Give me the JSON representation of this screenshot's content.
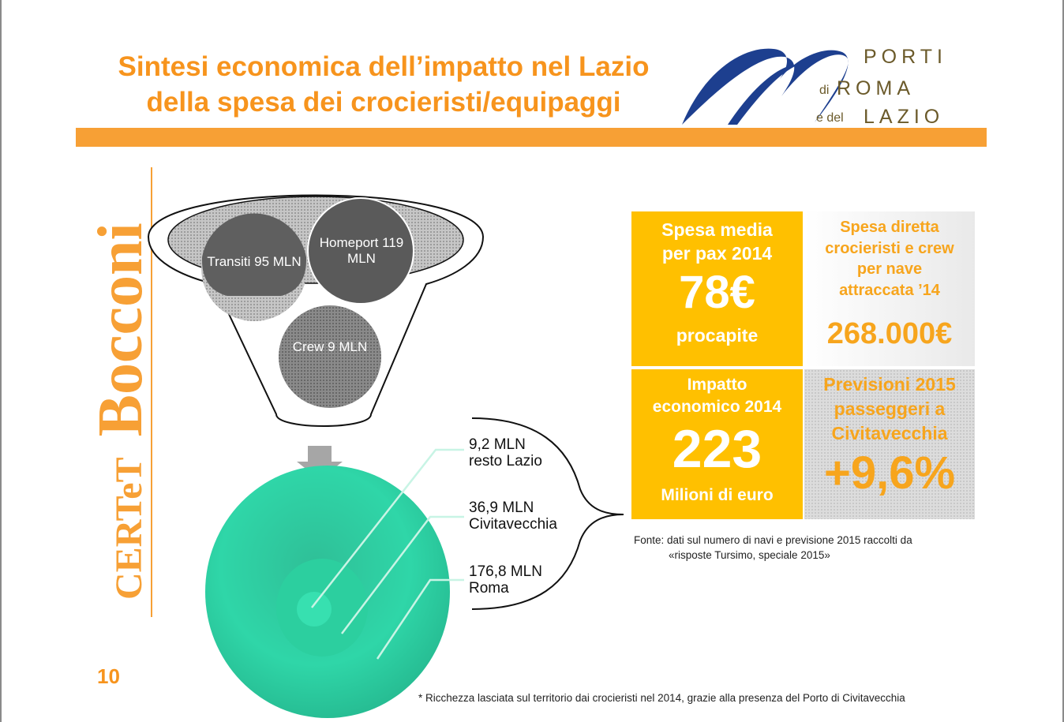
{
  "title": {
    "line1": "Sintesi economica dell’impatto nel Lazio",
    "line2": "della spesa dei crocieristi/equipaggi"
  },
  "logo": {
    "porti": "PORTI",
    "di": "di",
    "roma": "ROMA",
    "edel": "e del",
    "lazio": "LAZIO",
    "colors": {
      "text": "#6b5a2a",
      "swoosh": "#1d3f8f"
    }
  },
  "side_logo": {
    "certet": "CERTeT",
    "bocconi": "Bocconi"
  },
  "page_number": "10",
  "funnel": {
    "transiti": "Transiti 95 MLN",
    "homeport": "Homeport 119 MLN",
    "crew": "Crew 9 MLN"
  },
  "segments": [
    {
      "value": "9,2 MLN",
      "label": "resto Lazio"
    },
    {
      "value": "36,9 MLN",
      "label": "Civitavecchia"
    },
    {
      "value": "176,8 MLN",
      "label": "Roma"
    }
  ],
  "boxes": {
    "spesa_media": {
      "title_line1": "Spesa media",
      "title_line2": "per pax 2014",
      "value": "78€",
      "sub": "procapite"
    },
    "spesa_diretta": {
      "line1": "Spesa diretta",
      "line2": "crocieristi e crew",
      "line3": "per nave",
      "line4": "attraccata ’14",
      "value": "268.000€"
    },
    "impatto": {
      "line1": "Impatto",
      "line2": "economico 2014",
      "value": "223",
      "sub": "Milioni di euro"
    },
    "previsioni": {
      "line1": "Previsioni 2015",
      "line2": "passeggeri a",
      "line3": "Civitavecchia",
      "value": "+9,6%"
    }
  },
  "source": {
    "line1": "Fonte: dati sul numero di navi e previsione 2015 raccolti da",
    "line2": "«risposte Tursimo, speciale 2015»"
  },
  "footnote": "* Ricchezza lasciata sul territorio dai crocieristi nel 2014, grazie alla presenza del Porto di Civitavecchia",
  "colors": {
    "orange": "#f7941d",
    "yellow": "#ffc000",
    "teal": "#2fd3a5"
  }
}
